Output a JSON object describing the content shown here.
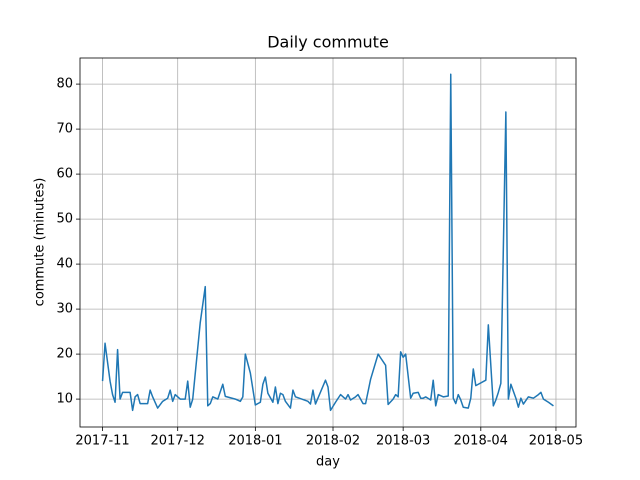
{
  "chart_data": {
    "type": "line",
    "title": "Daily commute",
    "x_label": "day",
    "y_label": "commute (minutes)",
    "x": [
      17471,
      17472,
      17474,
      17475,
      17476,
      17477,
      17478,
      17479,
      17482,
      17483,
      17484,
      17485,
      17486,
      17489,
      17490,
      17491,
      17493,
      17495,
      17497,
      17498,
      17499,
      17500,
      17502,
      17504,
      17505,
      17506,
      17507,
      17510,
      17512,
      17513,
      17514,
      17515,
      17517,
      17519,
      17520,
      17524,
      17526,
      17527,
      17528,
      17530,
      17532,
      17534,
      17535,
      17536,
      17537,
      17539,
      17540,
      17541,
      17542,
      17543,
      17544,
      17546,
      17547,
      17548,
      17553,
      17554,
      17555,
      17556,
      17560,
      17561,
      17562,
      17564,
      17566,
      17568,
      17569,
      17570,
      17572,
      17573,
      17575,
      17576,
      17578,
      17581,
      17584,
      17585,
      17587,
      17588,
      17589,
      17590,
      17591,
      17592,
      17594,
      17595,
      17597,
      17598,
      17599,
      17600,
      17602,
      17603,
      17604,
      17605,
      17607,
      17609,
      17610,
      17611,
      17612,
      17613,
      17614,
      17615,
      17617,
      17618,
      17619,
      17620,
      17624,
      17625,
      17627,
      17628,
      17629,
      17630,
      17632,
      17633,
      17634,
      17636,
      17637,
      17638,
      17639,
      17641,
      17643,
      17645,
      17646,
      17647,
      17649,
      17651
    ],
    "values": [
      14,
      22.4,
      14,
      11,
      9.3,
      21,
      10,
      11.5,
      11.5,
      7.5,
      10.5,
      11,
      9,
      9,
      12,
      10.5,
      8,
      9.5,
      10.2,
      12,
      9.5,
      11,
      10,
      10,
      14,
      8.2,
      10,
      27,
      35,
      8.5,
      9,
      10.5,
      10,
      13.3,
      10.6,
      10,
      9.5,
      10.5,
      20,
      15.8,
      8.7,
      9.3,
      13.3,
      14.9,
      11.3,
      9.3,
      12.7,
      9,
      11.3,
      11,
      9.5,
      8,
      12,
      10.5,
      9.5,
      8.9,
      12,
      8.9,
      14.2,
      12.7,
      7.5,
      9.3,
      11,
      10,
      11,
      9.8,
      10.5,
      11,
      9,
      9,
      14.4,
      20,
      17.5,
      8.8,
      10,
      11,
      10.5,
      20.5,
      19.3,
      20,
      10.2,
      11.3,
      11.5,
      10.2,
      10.2,
      10.5,
      9.8,
      14.2,
      8.5,
      11,
      10.5,
      10.7,
      82.2,
      10.2,
      9,
      11,
      9.8,
      8.2,
      8,
      10.2,
      16.7,
      13,
      14.2,
      26.5,
      8.5,
      9.8,
      11.5,
      13.5,
      73.8,
      10,
      13.3,
      10.2,
      8.2,
      10.2,
      8.9,
      10.5,
      10.2,
      11,
      11.5,
      10,
      9.3,
      8.5
    ],
    "color": "#1f77b4",
    "xlim": [
      17462,
      17660
    ],
    "xticks": [
      {
        "value": 17471,
        "label": "2017-11"
      },
      {
        "value": 17501,
        "label": "2017-12"
      },
      {
        "value": 17532,
        "label": "2018-01"
      },
      {
        "value": 17563,
        "label": "2018-02"
      },
      {
        "value": 17591,
        "label": "2018-03"
      },
      {
        "value": 17622,
        "label": "2018-04"
      },
      {
        "value": 17652,
        "label": "2018-05"
      }
    ],
    "ylim": [
      3.8,
      85.8
    ],
    "yticks": [
      10,
      20,
      30,
      40,
      50,
      60,
      70,
      80
    ],
    "grid": true
  }
}
